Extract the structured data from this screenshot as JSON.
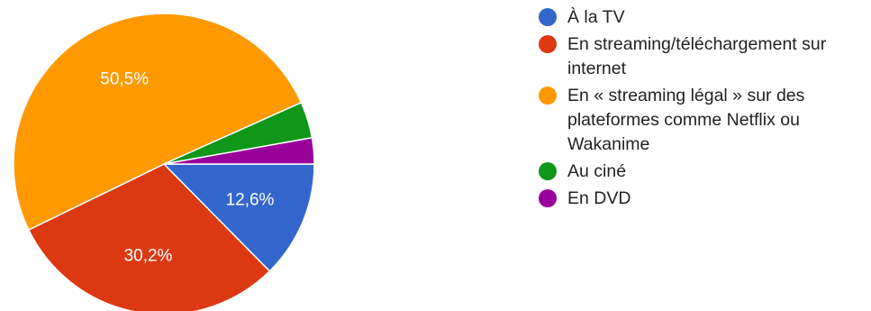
{
  "chart_data": {
    "type": "pie",
    "title": "",
    "start": "3 o'clock",
    "direction": "clockwise",
    "legend_position": "right",
    "categories": [
      "À la TV",
      "En streaming/téléchargement sur internet",
      "En « streaming légal » sur des plateformes comme Netflix ou Wakanime",
      "Au ciné",
      "En DVD"
    ],
    "values": [
      12.6,
      30.2,
      50.5,
      3.9,
      2.8
    ],
    "labels": [
      "12,6%",
      "30,2%",
      "50,5%",
      "",
      ""
    ],
    "colors": [
      "#3366cc",
      "#dc3912",
      "#ff9900",
      "#109618",
      "#990099"
    ]
  }
}
